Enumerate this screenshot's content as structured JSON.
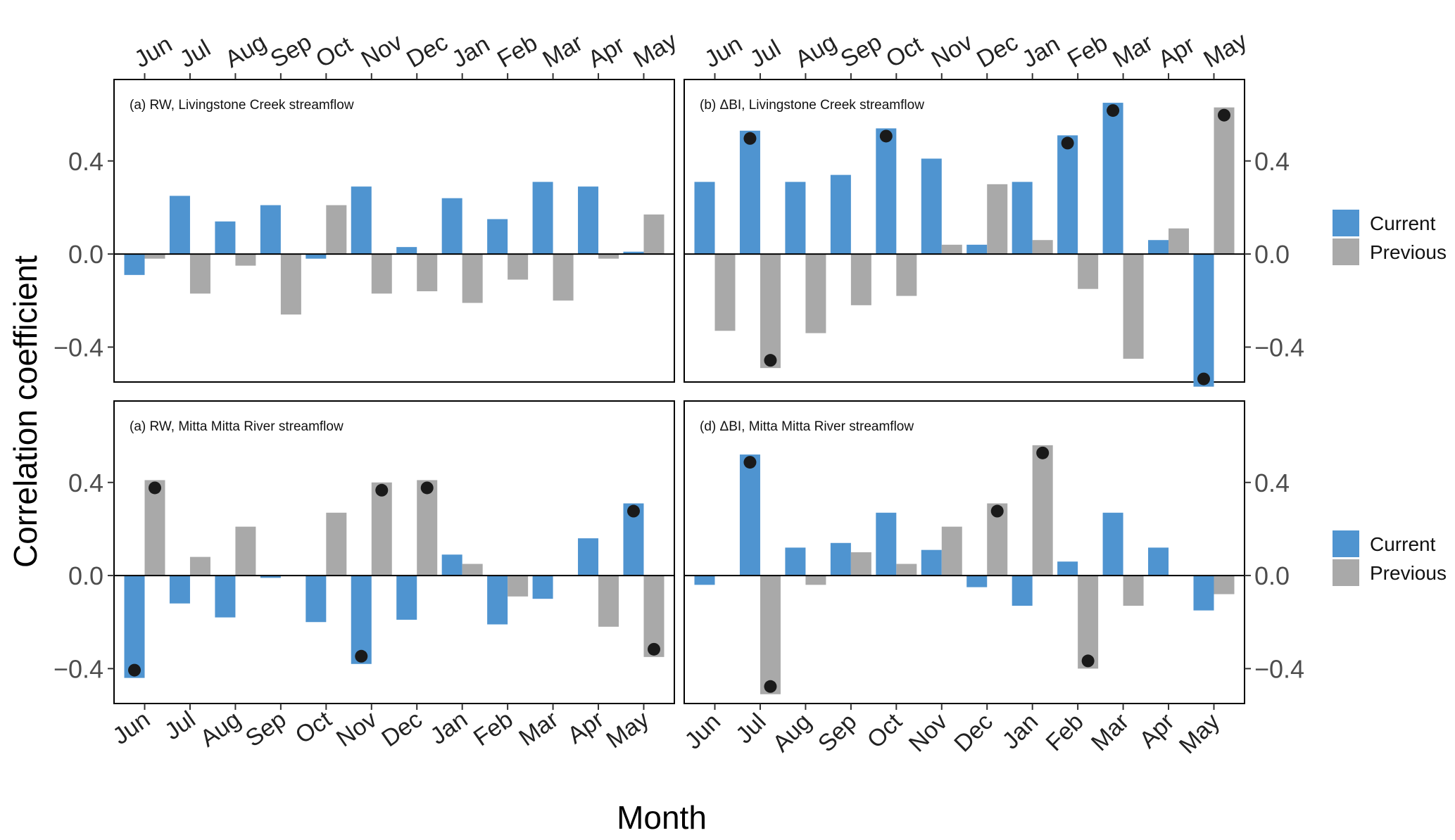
{
  "chart_data": {
    "type": "bar",
    "xlabel": "Month",
    "ylabel": "Correlation coefficient",
    "categories": [
      "Jun",
      "Jul",
      "Aug",
      "Sep",
      "Oct",
      "Nov",
      "Dec",
      "Jan",
      "Feb",
      "Mar",
      "Apr",
      "May"
    ],
    "ylim": [
      -0.55,
      0.75
    ],
    "yticks": [
      -0.4,
      0.0,
      0.4
    ],
    "ytick_labels": [
      "−0.4",
      "0.0",
      "0.4"
    ],
    "colors": {
      "current": "#4f94d0",
      "previous": "#a9a9a9",
      "marker": "#1a1a1a"
    },
    "legend": [
      {
        "name": "Current",
        "color": "#4f94d0"
      },
      {
        "name": "Previous",
        "color": "#a9a9a9"
      }
    ],
    "panels": [
      {
        "title": "(a) RW, Livingstone Creek streamflow",
        "current": [
          -0.09,
          0.25,
          0.14,
          0.21,
          -0.02,
          0.29,
          0.03,
          0.24,
          0.15,
          0.31,
          0.29,
          0.01
        ],
        "previous": [
          -0.02,
          -0.17,
          -0.05,
          -0.26,
          0.21,
          -0.17,
          -0.16,
          -0.21,
          -0.11,
          -0.2,
          -0.02,
          0.17
        ],
        "current_significant": [],
        "previous_significant": []
      },
      {
        "title": "(b) ΔBI, Livingstone Creek streamflow",
        "current": [
          0.31,
          0.53,
          0.31,
          0.34,
          0.54,
          0.41,
          0.04,
          0.31,
          0.51,
          0.65,
          0.06,
          -0.57
        ],
        "previous": [
          -0.33,
          -0.49,
          -0.34,
          -0.22,
          -0.18,
          0.04,
          0.3,
          0.06,
          -0.15,
          -0.45,
          0.11,
          0.63
        ],
        "current_significant": [
          1,
          4,
          8,
          9,
          11
        ],
        "previous_significant": [
          1,
          11
        ]
      },
      {
        "title": "(a) RW, Mitta Mitta River streamflow",
        "current": [
          -0.44,
          -0.12,
          -0.18,
          -0.01,
          -0.2,
          -0.38,
          -0.19,
          0.09,
          -0.21,
          -0.1,
          0.16,
          0.31
        ],
        "previous": [
          0.41,
          0.08,
          0.21,
          0.0,
          0.27,
          0.4,
          0.41,
          0.05,
          -0.09,
          0.0,
          -0.22,
          -0.35
        ],
        "current_significant": [
          0,
          5,
          11
        ],
        "previous_significant": [
          0,
          5,
          6,
          11
        ]
      },
      {
        "title": "(d) ΔBI, Mitta Mitta River streamflow",
        "current": [
          -0.04,
          0.52,
          0.12,
          0.14,
          0.27,
          0.11,
          -0.05,
          -0.13,
          0.06,
          0.27,
          0.12,
          -0.15
        ],
        "previous": [
          0.0,
          -0.51,
          -0.04,
          0.1,
          0.05,
          0.21,
          0.31,
          0.56,
          -0.4,
          -0.13,
          0.0,
          -0.08
        ],
        "current_significant": [
          1
        ],
        "previous_significant": [
          1,
          6,
          7,
          8
        ]
      }
    ]
  }
}
